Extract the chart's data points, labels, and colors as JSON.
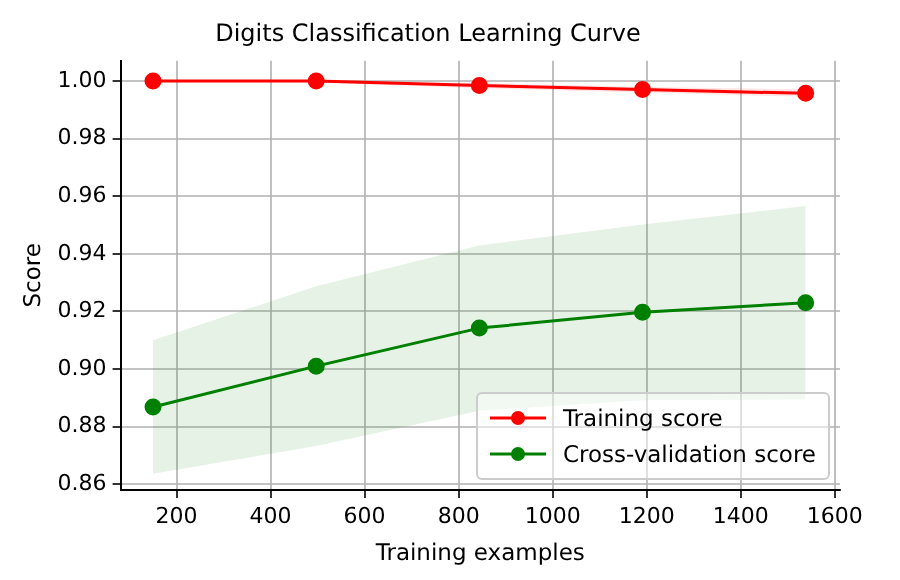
{
  "chart_data": {
    "type": "line",
    "title": "Digits Classification Learning Curve",
    "xlabel": "Training examples",
    "ylabel": "Score",
    "x": [
      150,
      497,
      844,
      1191,
      1538
    ],
    "series": [
      {
        "name": "Training score",
        "color": "#ff0000",
        "values": [
          1.0,
          1.0,
          0.9984,
          0.997,
          0.9957
        ],
        "lower": [
          1.0,
          0.9995,
          0.9975,
          0.996,
          0.9945
        ],
        "upper": [
          1.0,
          1.0,
          0.9993,
          0.998,
          0.997
        ]
      },
      {
        "name": "Cross-validation score",
        "color": "#008000",
        "values": [
          0.8868,
          0.901,
          0.9142,
          0.9197,
          0.923
        ],
        "lower": [
          0.8636,
          0.8733,
          0.8855,
          0.8892,
          0.8894
        ],
        "upper": [
          0.91,
          0.9287,
          0.9429,
          0.9502,
          0.9566
        ]
      }
    ],
    "xlim": [
      81,
      1611
    ],
    "ylim": [
      0.858,
      1.007
    ],
    "xticks": [
      200,
      400,
      600,
      800,
      1000,
      1200,
      1400,
      1600
    ],
    "yticks": [
      {
        "value": 0.86,
        "label": "0.86"
      },
      {
        "value": 0.88,
        "label": "0.88"
      },
      {
        "value": 0.9,
        "label": "0.90"
      },
      {
        "value": 0.92,
        "label": "0.92"
      },
      {
        "value": 0.94,
        "label": "0.94"
      },
      {
        "value": 0.96,
        "label": "0.96"
      },
      {
        "value": 0.98,
        "label": "0.98"
      },
      {
        "value": 1,
        "label": "1.00"
      }
    ],
    "grid": true,
    "legend": "bottom right",
    "marker": "circle",
    "line_style": "solid"
  }
}
